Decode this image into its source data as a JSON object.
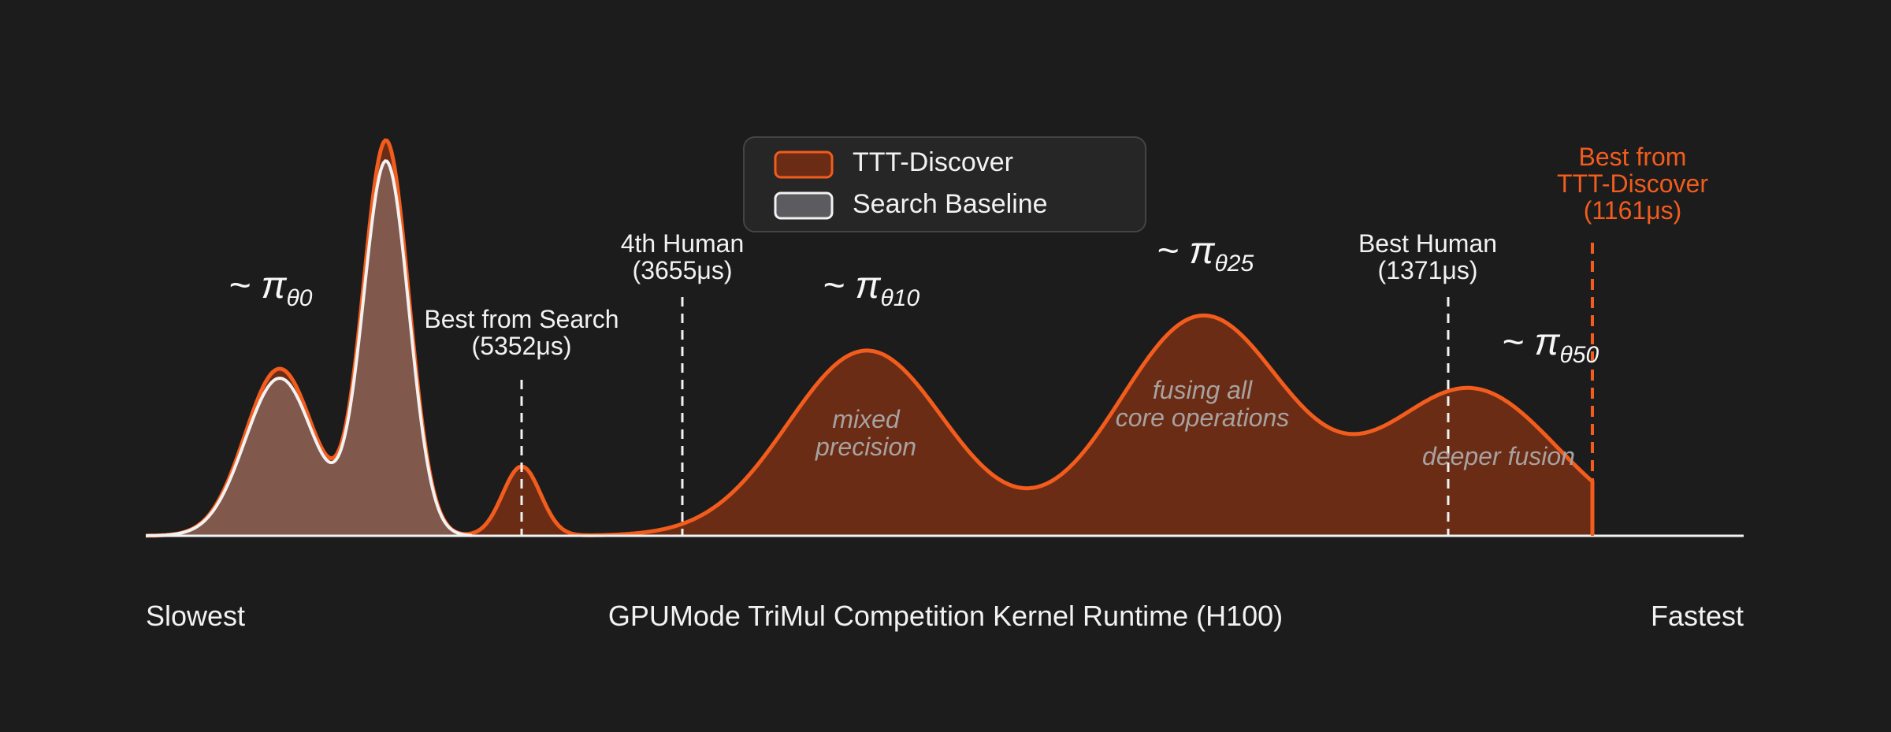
{
  "chart_data": {
    "type": "area",
    "xlabel": "GPUMode TriMul Competition Kernel Runtime (H100)",
    "x_start_label": "Slowest",
    "x_end_label": "Fastest",
    "legend": {
      "placement": "top-center",
      "entries": [
        {
          "name": "TTT-Discover",
          "color": "#f25c1c",
          "fill": "#6b2c16"
        },
        {
          "name": "Search Baseline",
          "color": "#f2f2f2",
          "fill": "#5c5c60"
        }
      ]
    },
    "series": [
      {
        "name": "TTT-Discover",
        "color": "#f25c1c",
        "fill": "#6b2c16"
      },
      {
        "name": "Search Baseline",
        "color": "#f2f2f2",
        "fill": "#80584c"
      }
    ],
    "markers": [
      {
        "name": "best-from-search",
        "line1": "Best from Search",
        "line2": "(5352μs)"
      },
      {
        "name": "fourth-human",
        "line1": "4th Human",
        "line2": "(3655μs)"
      },
      {
        "name": "best-human",
        "line1": "Best Human",
        "line2": "(1371μs)"
      },
      {
        "name": "best-ttt",
        "line1": "Best from",
        "line2": "TTT-Discover",
        "line3": "(1161μs)"
      }
    ],
    "policy_labels": [
      {
        "prefix": "~ π",
        "sub": "θ0"
      },
      {
        "prefix": "~ π",
        "sub": "θ10"
      },
      {
        "prefix": "~ π",
        "sub": "θ25"
      },
      {
        "prefix": "~ π",
        "sub": "θ50"
      }
    ],
    "annotations": [
      {
        "lines": [
          "mixed",
          "precision"
        ]
      },
      {
        "lines": [
          "fusing all",
          "core operations"
        ]
      },
      {
        "lines": [
          "deeper fusion"
        ]
      }
    ]
  }
}
